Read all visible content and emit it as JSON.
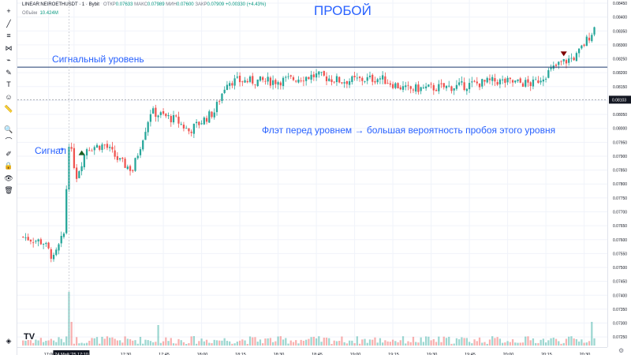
{
  "colors": {
    "up": "#26a69a",
    "down": "#ef5350",
    "accent": "#2962ff",
    "level_line": "#1e3a6e"
  },
  "legend": {
    "symbol": "LINEAR:NEIROETHUSDT · 1 · Bybit",
    "open_label": "ОТКР",
    "open_value": "0.07633",
    "high_label": "МАКС",
    "high_value": "0.07989",
    "low_label": "МИН",
    "low_value": "0.07600",
    "close_label": "ЗАКР",
    "close_value": "0.07909",
    "change": "+0.00330 (+4.43%)",
    "volume_label": "Объём",
    "volume_value": "10.424M"
  },
  "title": "ПРОБОЙ",
  "annotations": {
    "signal_level": "Сигнальный уровень",
    "signal": "Сигнал",
    "flat_note": "Флэт перед уровнем  → большая вероятность пробоя этого уровня"
  },
  "current_price": "0.08103",
  "logo": "TV",
  "toolbar_icons": [
    "crosshair-icon",
    "trend-line-icon",
    "fib-icon",
    "pattern-icon",
    "projection-icon",
    "brush-icon",
    "text-icon",
    "emoji-icon",
    "ruler-icon",
    "zoom-icon",
    "magnet-icon",
    "pencil-lock-icon",
    "lock-icon",
    "eye-icon",
    "trash-icon",
    "layers-icon"
  ],
  "chart_data": {
    "type": "candlestick",
    "title": "ПРОБОЙ",
    "ylim": [
      0.07225,
      0.0845
    ],
    "price_ticks": [
      "0.08450",
      "0.08400",
      "0.08350",
      "0.08300",
      "0.08250",
      "0.08200",
      "0.08150",
      "0.08100",
      "0.08050",
      "0.08000",
      "0.07950",
      "0.07900",
      "0.07850",
      "0.07800",
      "0.07750",
      "0.07700",
      "0.07650",
      "0.07600",
      "0.07550",
      "0.07500",
      "0.07450",
      "0.07400",
      "0.07350",
      "0.07300",
      "0.07250"
    ],
    "time_ticks": [
      "17:00",
      "17:10",
      "17:30",
      "17:45",
      "18:00",
      "18:15",
      "18:30",
      "18:45",
      "19:00",
      "19:15",
      "19:30",
      "19:45",
      "20:00",
      "20:15",
      "20:30"
    ],
    "time_highlight": "24 Май '25",
    "signal_level_price": 0.0822,
    "current_price": 0.08103,
    "anchors": [
      {
        "t": "16:50",
        "p": 0.0761
      },
      {
        "t": "16:58",
        "p": 0.0759
      },
      {
        "t": "17:02",
        "p": 0.0753
      },
      {
        "t": "17:06",
        "p": 0.0762
      },
      {
        "t": "17:08",
        "p": 0.0795
      },
      {
        "t": "17:11",
        "p": 0.0783
      },
      {
        "t": "17:15",
        "p": 0.0793
      },
      {
        "t": "17:22",
        "p": 0.0794
      },
      {
        "t": "17:28",
        "p": 0.0788
      },
      {
        "t": "17:33",
        "p": 0.0785
      },
      {
        "t": "17:40",
        "p": 0.0806
      },
      {
        "t": "17:50",
        "p": 0.0803
      },
      {
        "t": "17:55",
        "p": 0.0799
      },
      {
        "t": "18:05",
        "p": 0.0806
      },
      {
        "t": "18:10",
        "p": 0.0817
      },
      {
        "t": "18:30",
        "p": 0.0817
      },
      {
        "t": "18:45",
        "p": 0.0819
      },
      {
        "t": "18:55",
        "p": 0.0817
      },
      {
        "t": "19:10",
        "p": 0.0818
      },
      {
        "t": "19:20",
        "p": 0.0814
      },
      {
        "t": "19:40",
        "p": 0.0815
      },
      {
        "t": "19:55",
        "p": 0.0817
      },
      {
        "t": "20:10",
        "p": 0.0816
      },
      {
        "t": "20:20",
        "p": 0.0823
      },
      {
        "t": "20:27",
        "p": 0.0826
      },
      {
        "t": "20:34",
        "p": 0.0836
      }
    ],
    "markers": [
      {
        "type": "buy",
        "t": "17:13",
        "p": 0.07915
      },
      {
        "type": "sell",
        "t": "20:22",
        "p": 0.08265
      }
    ]
  }
}
